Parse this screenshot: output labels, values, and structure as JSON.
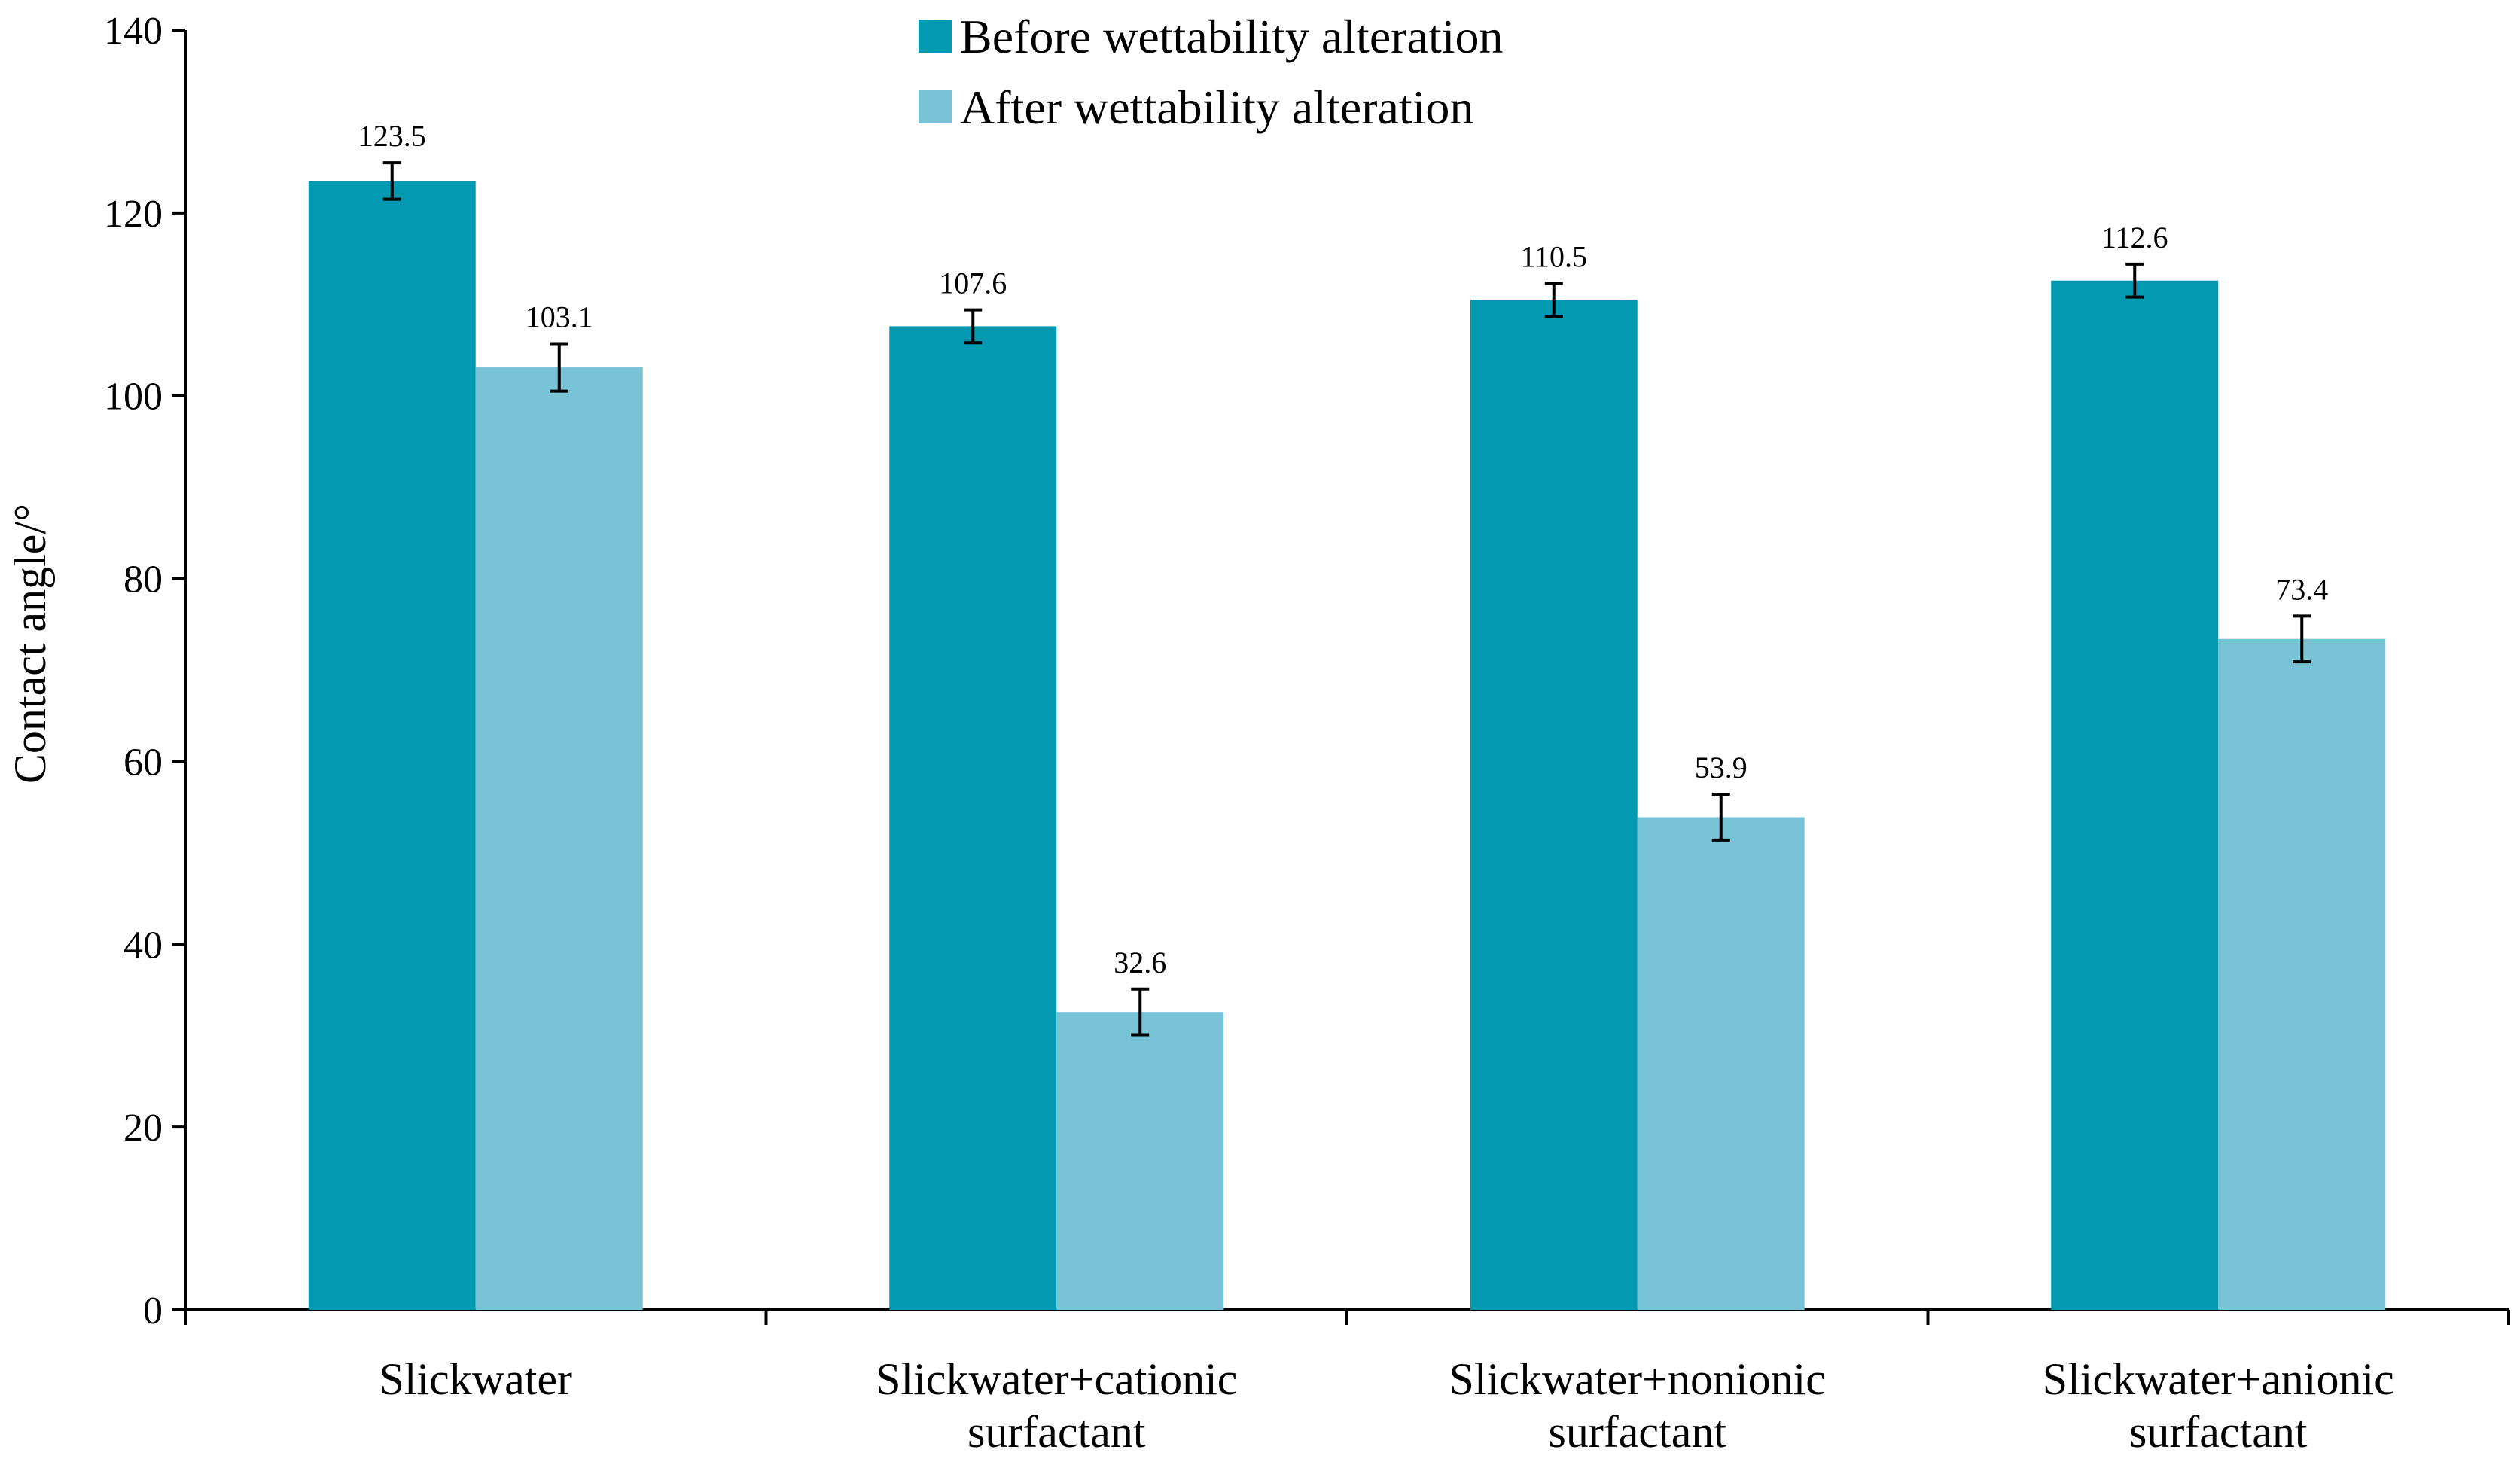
{
  "chart_data": {
    "type": "bar",
    "categories": [
      [
        "Slickwater"
      ],
      [
        "Slickwater+cationic",
        "surfactant"
      ],
      [
        "Slickwater+nonionic",
        "surfactant"
      ],
      [
        "Slickwater+anionic",
        "surfactant"
      ]
    ],
    "series": [
      {
        "name": "Before wettability alteration",
        "color": "#0399B1",
        "values": [
          123.5,
          107.6,
          110.5,
          112.6
        ],
        "error": [
          2.0,
          1.8,
          1.8,
          1.8
        ],
        "labels": [
          "123.5",
          "107.6",
          "110.5",
          "112.6"
        ]
      },
      {
        "name": "After wettability alteration",
        "color": "#79C3D6",
        "values": [
          103.1,
          32.6,
          53.9,
          73.4
        ],
        "error": [
          2.6,
          2.5,
          2.5,
          2.5
        ],
        "labels": [
          "103.1",
          "32.6",
          "53.9",
          "73.4"
        ]
      }
    ],
    "ylabel": "Contact angle/°",
    "xlabel": "",
    "ylim": [
      0,
      140
    ],
    "yticks": [
      0,
      20,
      40,
      60,
      80,
      100,
      120,
      140
    ],
    "grid": false,
    "legend": "top-center",
    "error_bars": true
  }
}
